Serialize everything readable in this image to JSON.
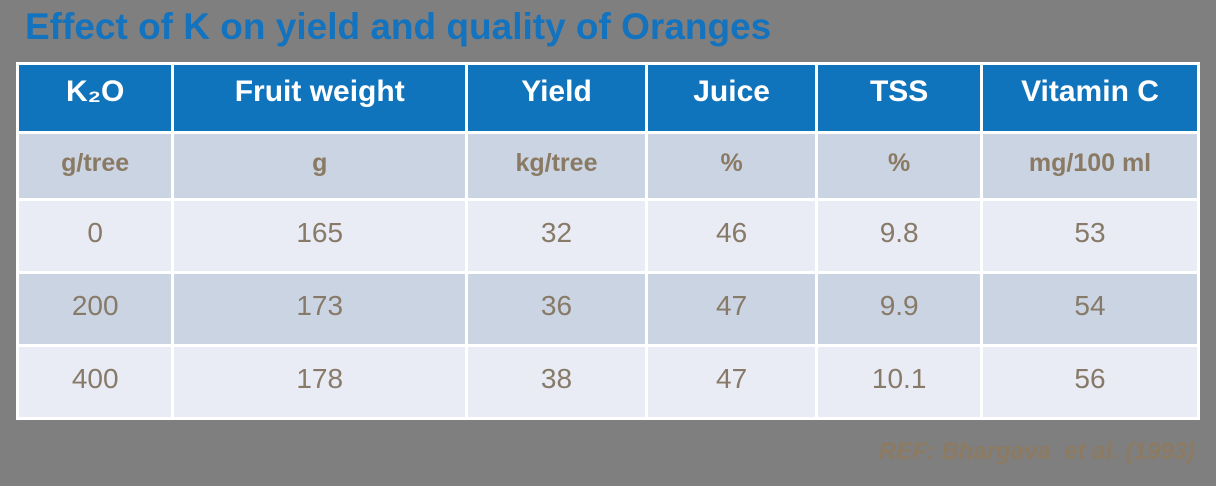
{
  "slide": {
    "title": "Effect of K on yield and quality of Oranges",
    "reference": "REF: Bhargava  et al. (1993)"
  },
  "colors": {
    "background_gray": "#7F7F7F",
    "accent_blue": "#1373BE",
    "header_blue": "#0F74BC",
    "header_text": "#FFFFFF",
    "row_dark": "#CBD4E2",
    "row_light": "#E9ECF4",
    "cell_text_brown": "#877A68",
    "reference_brown": "#8C7B62",
    "grid_white": "#FFFFFF"
  },
  "chart_data": {
    "type": "table",
    "title": "Effect of K on yield and quality of Oranges",
    "columns": [
      {
        "label": "K₂O",
        "unit": "g/tree"
      },
      {
        "label": "Fruit weight",
        "unit": "g"
      },
      {
        "label": "Yield",
        "unit": "kg/tree"
      },
      {
        "label": "Juice",
        "unit": "%"
      },
      {
        "label": "TSS",
        "unit": "%"
      },
      {
        "label": "Vitamin C",
        "unit": "mg/100 ml"
      }
    ],
    "rows": [
      [
        "0",
        "165",
        "32",
        "46",
        "9.8",
        "53"
      ],
      [
        "200",
        "173",
        "36",
        "47",
        "9.9",
        "54"
      ],
      [
        "400",
        "178",
        "38",
        "47",
        "10.1",
        "56"
      ]
    ],
    "source": "REF: Bhargava  et al. (1993)"
  }
}
